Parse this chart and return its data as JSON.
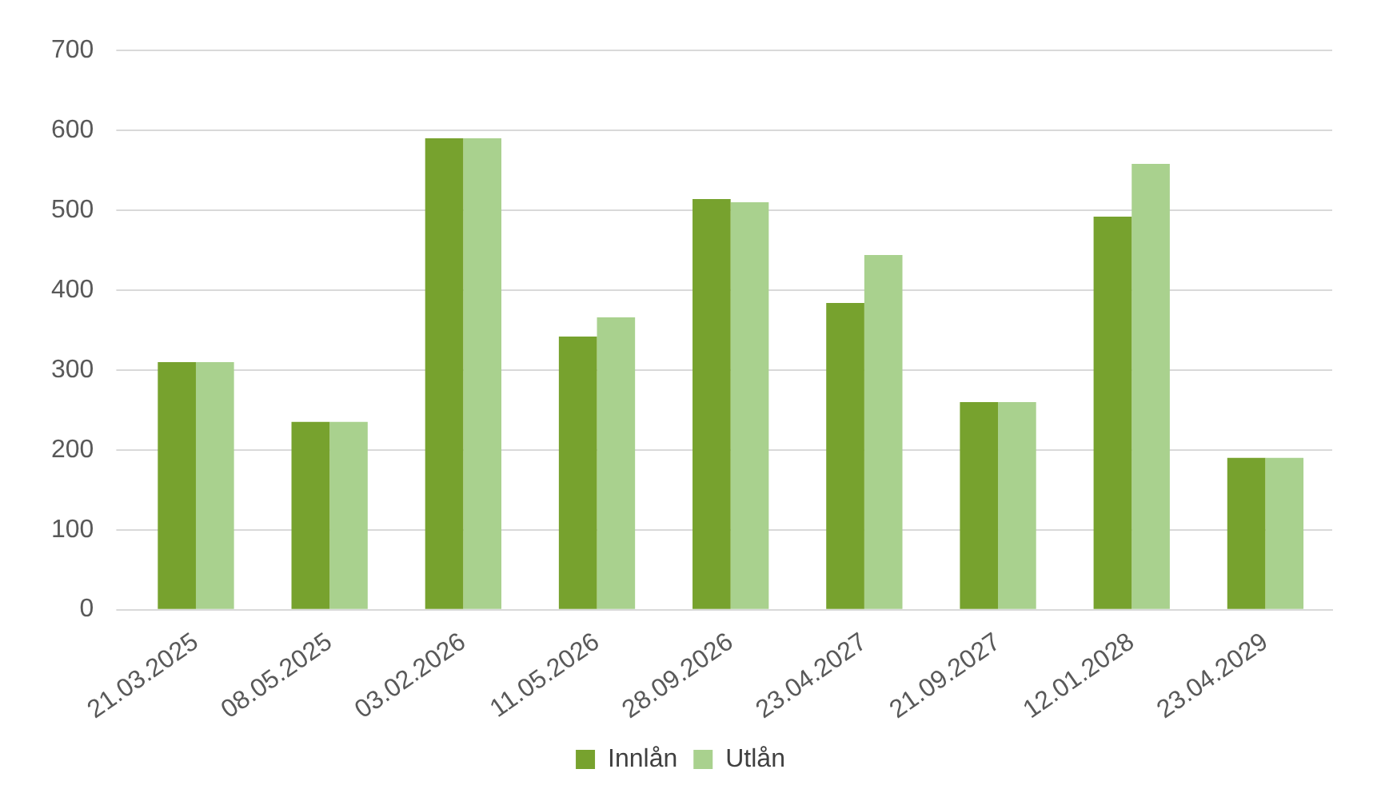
{
  "chart_data": {
    "type": "bar",
    "categories": [
      "21.03.2025",
      "08.05.2025",
      "03.02.2026",
      "11.05.2026",
      "28.09.2026",
      "23.04.2027",
      "21.09.2027",
      "12.01.2028",
      "23.04.2029"
    ],
    "series": [
      {
        "name": "Innlån",
        "color": "#77a22e",
        "values": [
          310,
          235,
          590,
          342,
          514,
          384,
          260,
          492,
          190
        ]
      },
      {
        "name": "Utlån",
        "color": "#a9d18e",
        "values": [
          310,
          235,
          590,
          366,
          510,
          444,
          260,
          558,
          190
        ]
      }
    ],
    "ylim": [
      0,
      700
    ],
    "yticks": [
      0,
      100,
      200,
      300,
      400,
      500,
      600,
      700
    ],
    "grid": "y",
    "legend": "bottom"
  }
}
